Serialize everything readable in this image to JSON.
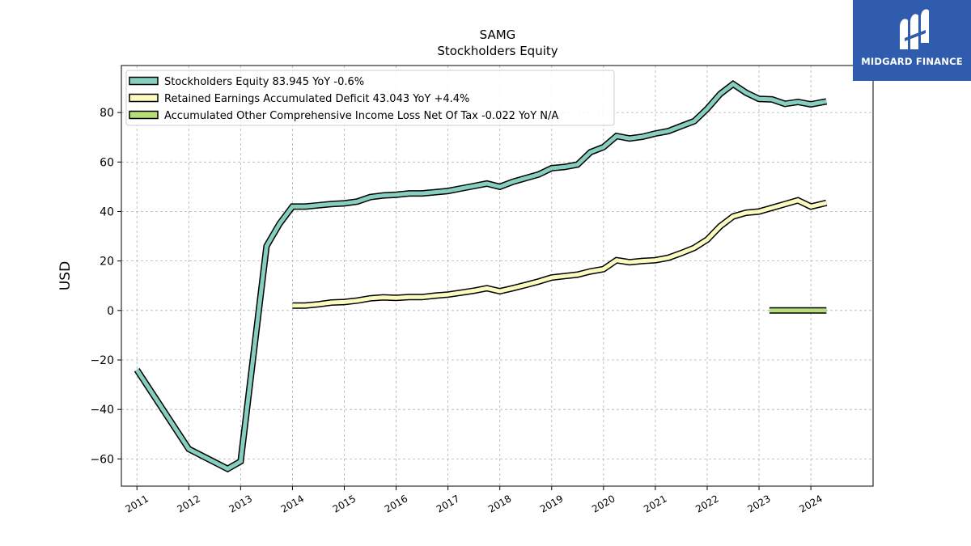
{
  "chart_data": {
    "type": "line",
    "title": "SAMG",
    "subtitle": "Stockholders  Equity",
    "ylabel": "USD",
    "xlabel": "",
    "xlim": [
      2010.7,
      2025.2
    ],
    "ylim": [
      -71,
      99
    ],
    "yticks": [
      -60,
      -40,
      -20,
      0,
      20,
      40,
      60,
      80
    ],
    "xticks": [
      "2011",
      "2012",
      "2013",
      "2014",
      "2015",
      "2016",
      "2017",
      "2018",
      "2019",
      "2020",
      "2021",
      "2022",
      "2023",
      "2024"
    ],
    "grid": true,
    "legend_position": "top-left",
    "series": [
      {
        "name": "Stockholders Equity  83.945 YoY -0.6%",
        "color": "#86cfc0",
        "points": [
          [
            2011.0,
            -24
          ],
          [
            2012.0,
            -56
          ],
          [
            2012.75,
            -64
          ],
          [
            2013.0,
            -61
          ],
          [
            2013.5,
            26
          ],
          [
            2013.75,
            35
          ],
          [
            2014.0,
            42
          ],
          [
            2014.25,
            42
          ],
          [
            2014.5,
            42.5
          ],
          [
            2014.75,
            43
          ],
          [
            2015.0,
            43.3
          ],
          [
            2015.25,
            44
          ],
          [
            2015.5,
            45.8
          ],
          [
            2015.75,
            46.5
          ],
          [
            2016.0,
            46.8
          ],
          [
            2016.25,
            47.3
          ],
          [
            2016.5,
            47.3
          ],
          [
            2016.75,
            47.8
          ],
          [
            2017.0,
            48.3
          ],
          [
            2017.25,
            49.3
          ],
          [
            2017.5,
            50.3
          ],
          [
            2017.75,
            51.3
          ],
          [
            2018.0,
            50
          ],
          [
            2018.25,
            52
          ],
          [
            2018.5,
            53.5
          ],
          [
            2018.75,
            55
          ],
          [
            2019.0,
            57.5
          ],
          [
            2019.25,
            58
          ],
          [
            2019.5,
            59
          ],
          [
            2019.75,
            64
          ],
          [
            2020.0,
            66
          ],
          [
            2020.25,
            70.5
          ],
          [
            2020.5,
            69.5
          ],
          [
            2020.75,
            70.2
          ],
          [
            2021.0,
            71.5
          ],
          [
            2021.25,
            72.5
          ],
          [
            2021.5,
            74.5
          ],
          [
            2021.75,
            76.5
          ],
          [
            2022.0,
            81.5
          ],
          [
            2022.25,
            87.5
          ],
          [
            2022.5,
            91.5
          ],
          [
            2022.75,
            88
          ],
          [
            2023.0,
            85.5
          ],
          [
            2023.25,
            85.3
          ],
          [
            2023.5,
            83.5
          ],
          [
            2023.75,
            84.3
          ],
          [
            2024.0,
            83.3
          ],
          [
            2024.3,
            84.5
          ]
        ]
      },
      {
        "name": "Retained Earnings Accumulated Deficit  43.043 YoY +4.4%",
        "color": "#fbfbbf",
        "points": [
          [
            2014.0,
            2
          ],
          [
            2014.25,
            2
          ],
          [
            2014.5,
            2.5
          ],
          [
            2014.75,
            3.2
          ],
          [
            2015.0,
            3.4
          ],
          [
            2015.25,
            4
          ],
          [
            2015.5,
            4.9
          ],
          [
            2015.75,
            5.3
          ],
          [
            2016.0,
            5.1
          ],
          [
            2016.25,
            5.4
          ],
          [
            2016.5,
            5.4
          ],
          [
            2016.75,
            6
          ],
          [
            2017.0,
            6.4
          ],
          [
            2017.25,
            7.2
          ],
          [
            2017.5,
            8
          ],
          [
            2017.75,
            9
          ],
          [
            2018.0,
            7.8
          ],
          [
            2018.25,
            9
          ],
          [
            2018.5,
            10.3
          ],
          [
            2018.75,
            11.7
          ],
          [
            2019.0,
            13.3
          ],
          [
            2019.25,
            13.9
          ],
          [
            2019.5,
            14.5
          ],
          [
            2019.75,
            15.8
          ],
          [
            2020.0,
            16.7
          ],
          [
            2020.25,
            20.3
          ],
          [
            2020.5,
            19.5
          ],
          [
            2020.75,
            20
          ],
          [
            2021.0,
            20.3
          ],
          [
            2021.25,
            21.3
          ],
          [
            2021.5,
            23.2
          ],
          [
            2021.75,
            25.3
          ],
          [
            2022.0,
            28.6
          ],
          [
            2022.25,
            34
          ],
          [
            2022.5,
            38
          ],
          [
            2022.75,
            39.5
          ],
          [
            2023.0,
            40
          ],
          [
            2023.25,
            41.5
          ],
          [
            2023.5,
            43
          ],
          [
            2023.75,
            44.5
          ],
          [
            2024.0,
            42
          ],
          [
            2024.3,
            43.5
          ]
        ]
      },
      {
        "name": "Accumulated Other Comprehensive Income Loss Net Of Tax  -0.022 YoY N/A",
        "color": "#b6de78",
        "points": [
          [
            2023.2,
            0
          ],
          [
            2023.5,
            0
          ],
          [
            2023.75,
            0
          ],
          [
            2024.0,
            0
          ],
          [
            2024.3,
            0
          ]
        ]
      }
    ]
  },
  "logo": {
    "wordmark": "MIDGARD FINANCE",
    "icon": "midgard-m-logo-icon",
    "background": "#2f5cad"
  }
}
